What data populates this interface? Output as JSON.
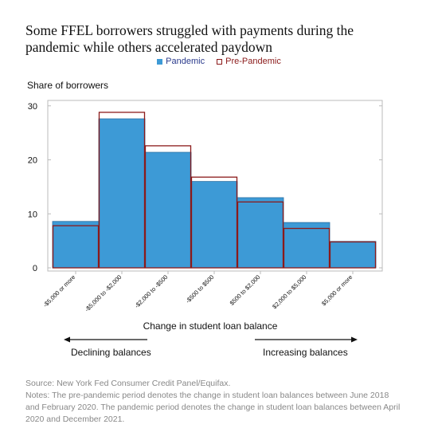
{
  "title": "Some FFEL borrowers struggled with payments during the pandemic while others accelerated paydown",
  "legend": {
    "pandemic": "Pandemic",
    "pre_pandemic": "Pre-Pandemic"
  },
  "colors": {
    "pandemic_fill": "#3d9ad6",
    "pandemic_stroke": "#2b6fa3",
    "pre_pandemic": "#8b1a1a"
  },
  "arrows": {
    "left": "Declining balances",
    "right": "Increasing balances"
  },
  "footer": {
    "source": "Source: New York Fed Consumer Credit Panel/Equifax.",
    "notes": "Notes: The pre-pandemic period denotes the change in student loan balances between June 2018 and February 2020. The pandemic period denotes the change in student loan balances between April 2020 and December 2021."
  },
  "chart_data": {
    "type": "bar",
    "title": "Some FFEL borrowers struggled with payments during the pandemic while others accelerated paydown",
    "ylabel": "Share of borrowers",
    "xlabel": "Change in student loan balance",
    "ylim": [
      0,
      30
    ],
    "yticks": [
      0,
      10,
      20,
      30
    ],
    "categories": [
      "-$5,000 or more",
      "-$5,000 to -$2,000",
      "-$2,000 to -$500",
      "-$500 to $500",
      "$500 to $2,000",
      "$2,000 to $5,000",
      "$5,000 or more"
    ],
    "series": [
      {
        "name": "Pandemic",
        "values": [
          8.6,
          27.6,
          21.4,
          16.0,
          13.0,
          8.4,
          4.9
        ]
      },
      {
        "name": "Pre-Pandemic",
        "values": [
          7.8,
          28.8,
          22.6,
          16.8,
          12.2,
          7.3,
          4.8
        ]
      }
    ],
    "grid": false,
    "legend_position": "top-center"
  }
}
